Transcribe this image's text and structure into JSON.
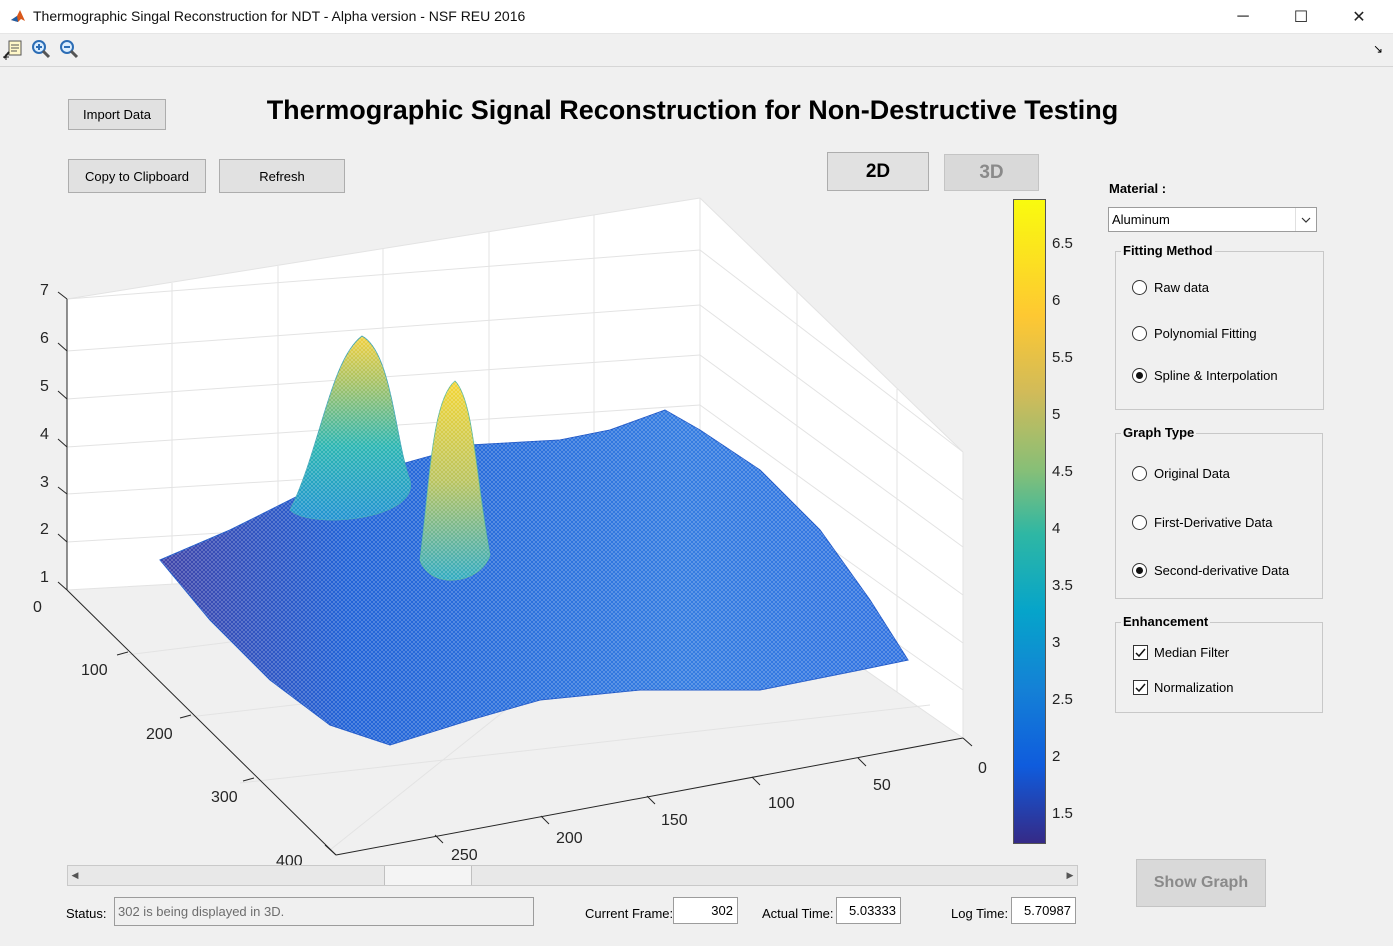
{
  "window": {
    "title": "Thermographic Singal Reconstruction for NDT - Alpha version - NSF REU 2016",
    "controls": {
      "minimize": "─",
      "maximize": "☐",
      "close": "✕"
    }
  },
  "toolbar": {
    "icons": [
      "data-cursor-icon",
      "zoom-in-icon",
      "zoom-out-icon"
    ],
    "dock_glyph": "↘"
  },
  "buttons": {
    "import": "Import Data",
    "copy": "Copy to Clipboard",
    "refresh": "Refresh",
    "view_2d": "2D",
    "view_3d": "3D",
    "show_graph": "Show Graph"
  },
  "main_title": "Thermographic Signal Reconstruction for Non-Destructive Testing",
  "plot": {
    "z_ticks": [
      "0",
      "1",
      "2",
      "3",
      "4",
      "5",
      "6",
      "7"
    ],
    "y_ticks": [
      "100",
      "200",
      "300",
      "400"
    ],
    "x_ticks": [
      "0",
      "50",
      "100",
      "150",
      "200",
      "250"
    ]
  },
  "colorbar": {
    "ticks": [
      "6.5",
      "6",
      "5.5",
      "5",
      "4.5",
      "4",
      "3.5",
      "3",
      "2.5",
      "2",
      "1.5"
    ]
  },
  "material": {
    "label": "Material :",
    "value": "Aluminum"
  },
  "fitting_method": {
    "title": "Fitting Method",
    "options": [
      "Raw data",
      "Polynomial Fitting",
      "Spline & Interpolation"
    ],
    "selected": "Spline & Interpolation"
  },
  "graph_type": {
    "title": "Graph Type",
    "options": [
      "Original Data",
      "First-Derivative Data",
      "Second-derivative Data"
    ],
    "selected": "Second-derivative Data"
  },
  "enhancement": {
    "title": "Enhancement",
    "options": [
      "Median Filter",
      "Normalization"
    ],
    "checked": [
      true,
      true
    ]
  },
  "status": {
    "label": "Status:",
    "text": "302 is being displayed in 3D.",
    "frame_label": "Current Frame:",
    "frame_value": "302",
    "actual_label": "Actual Time:",
    "actual_value": "5.03333",
    "log_label": "Log Time:",
    "log_value": "5.70987"
  },
  "slider": {
    "left_arrow": "◀",
    "right_arrow": "▶"
  },
  "colors": {
    "background": "#f0f0f0",
    "colormap_low": "#352a87",
    "colormap_high": "#f9fb0e"
  }
}
